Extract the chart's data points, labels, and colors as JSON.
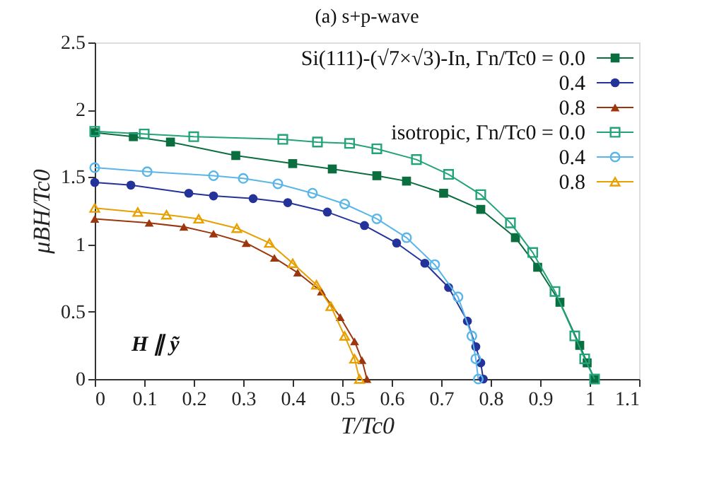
{
  "chart_data": {
    "type": "line",
    "title": "(a) s+p-wave",
    "xlabel": "T/Tc0",
    "ylabel": "μBH/Tc0",
    "xlim": [
      0,
      1.1
    ],
    "xticks": [
      0,
      0.1,
      0.2,
      0.3,
      0.4,
      0.5,
      0.6,
      0.7,
      0.8,
      0.9,
      1,
      1.1
    ],
    "ylim": [
      0,
      2.5
    ],
    "yticks": [
      0,
      0.5,
      1,
      1.5,
      2,
      2.5
    ],
    "grid": false,
    "legend": "top right",
    "line_style": "solid",
    "annotations": [
      "H ∥ ỹ"
    ],
    "series": [
      {
        "name": "Si(111)-(√7×√3)-In, Γn/Tc0 = 0.0",
        "color": "#0b6e3e",
        "marker": "square",
        "x": [
          0,
          0.078,
          0.153,
          0.285,
          0.4,
          0.48,
          0.57,
          0.63,
          0.705,
          0.78,
          0.85,
          0.895,
          0.94,
          0.98,
          0.995,
          1.01
        ],
        "values": [
          1.83,
          1.8,
          1.76,
          1.66,
          1.6,
          1.56,
          1.51,
          1.47,
          1.38,
          1.26,
          1.05,
          0.83,
          0.57,
          0.25,
          0.12,
          0
        ]
      },
      {
        "name": "0.4",
        "color": "#23339a",
        "marker": "circle",
        "x": [
          0,
          0.073,
          0.19,
          0.24,
          0.32,
          0.39,
          0.47,
          0.545,
          0.61,
          0.667,
          0.715,
          0.753,
          0.77,
          0.78,
          0.785
        ],
        "values": [
          1.46,
          1.44,
          1.38,
          1.36,
          1.34,
          1.31,
          1.24,
          1.14,
          1.01,
          0.86,
          0.68,
          0.43,
          0.24,
          0.12,
          0
        ]
      },
      {
        "name": "0.8",
        "color": "#9c360c",
        "marker": "triangle",
        "x": [
          0,
          0.11,
          0.18,
          0.24,
          0.306,
          0.363,
          0.41,
          0.458,
          0.496,
          0.525,
          0.54,
          0.55
        ],
        "values": [
          1.19,
          1.16,
          1.13,
          1.08,
          1.01,
          0.9,
          0.79,
          0.65,
          0.46,
          0.28,
          0.14,
          0
        ]
      },
      {
        "name": "isotropic, Γn/Tc0 = 0.0",
        "color": "#22a37a",
        "marker": "square-open",
        "x": [
          0,
          0.1,
          0.2,
          0.38,
          0.45,
          0.515,
          0.57,
          0.65,
          0.715,
          0.78,
          0.84,
          0.885,
          0.93,
          0.97,
          0.99,
          1.01
        ],
        "values": [
          1.84,
          1.82,
          1.8,
          1.78,
          1.76,
          1.75,
          1.71,
          1.63,
          1.52,
          1.37,
          1.16,
          0.94,
          0.65,
          0.32,
          0.15,
          0
        ]
      },
      {
        "name": "0.4",
        "color": "#5ab6e8",
        "marker": "circle-open",
        "x": [
          0,
          0.106,
          0.24,
          0.3,
          0.37,
          0.44,
          0.505,
          0.57,
          0.63,
          0.687,
          0.734,
          0.762,
          0.77,
          0.775
        ],
        "values": [
          1.57,
          1.54,
          1.51,
          1.49,
          1.45,
          1.38,
          1.3,
          1.19,
          1.05,
          0.85,
          0.61,
          0.32,
          0.15,
          0
        ]
      },
      {
        "name": "0.8",
        "color": "#e8a000",
        "marker": "triangle-open",
        "x": [
          0,
          0.087,
          0.145,
          0.21,
          0.287,
          0.353,
          0.4,
          0.448,
          0.477,
          0.505,
          0.525,
          0.535
        ],
        "values": [
          1.27,
          1.24,
          1.22,
          1.19,
          1.12,
          1.01,
          0.86,
          0.7,
          0.54,
          0.32,
          0.15,
          0
        ]
      }
    ]
  }
}
